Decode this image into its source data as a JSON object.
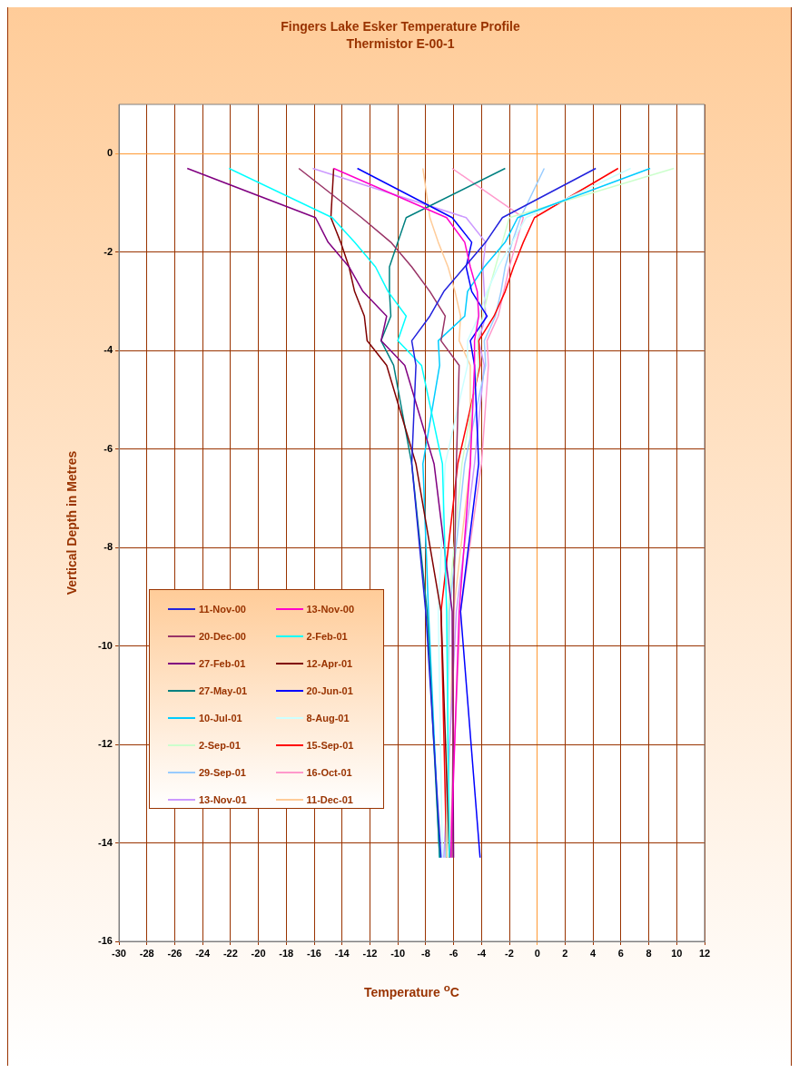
{
  "chart_data": {
    "type": "line",
    "title": "Fingers Lake Esker Temperature Profile",
    "subtitle": "Thermistor E-00-1",
    "xlabel": "Temperature $^{o}$C",
    "ylabel": "Vertical Depth in Metres",
    "xlim": [
      -30,
      12
    ],
    "xticks": [
      -30,
      -28,
      -26,
      -24,
      -22,
      -20,
      -18,
      -16,
      -14,
      -12,
      -10,
      -8,
      -6,
      -4,
      -2,
      0,
      2,
      4,
      6,
      8,
      10,
      12
    ],
    "ylim": [
      -16,
      1
    ],
    "yticks": [
      -16,
      -14,
      -12,
      -10,
      -8,
      -6,
      -4,
      -2,
      0
    ],
    "grid": true,
    "legend": "bottom left",
    "marker": "none",
    "line_style": "solid",
    "series": [
      {
        "name": "11-Nov-00",
        "color": "#2222dd",
        "x": [
          4.2,
          -2.5,
          -3.7,
          -5.2,
          -6.7,
          -7.7,
          -9.0,
          -8.7,
          -9.0,
          -8.0,
          -6.9
        ],
        "values": [
          -0.3,
          -1.3,
          -1.8,
          -2.3,
          -2.8,
          -3.3,
          -3.8,
          -4.3,
          -6.3,
          -9.3,
          -14.3
        ]
      },
      {
        "name": "13-Nov-00",
        "color": "#ff00cc",
        "x": [
          -14.6,
          -6.5,
          -5.2,
          -4.8,
          -4.3,
          -4.2,
          -4.5,
          -4.5,
          -4.8,
          -5.6,
          -6.2
        ],
        "values": [
          -0.3,
          -1.3,
          -1.8,
          -2.3,
          -2.8,
          -3.3,
          -3.8,
          -4.3,
          -6.3,
          -9.3,
          -14.3
        ]
      },
      {
        "name": "20-Dec-00",
        "color": "#993366",
        "x": [
          -17.1,
          -12.6,
          -10.5,
          -9.0,
          -7.7,
          -6.6,
          -6.9,
          -5.6,
          -5.8,
          -6.0,
          -6.1
        ],
        "values": [
          -0.3,
          -1.3,
          -1.8,
          -2.3,
          -2.8,
          -3.3,
          -3.8,
          -4.3,
          -6.3,
          -9.3,
          -14.3
        ]
      },
      {
        "name": "2-Feb-01",
        "color": "#00ffff",
        "x": [
          -22.1,
          -14.7,
          -13.1,
          -11.6,
          -10.7,
          -9.4,
          -10.0,
          -8.3,
          -6.8,
          -6.5,
          -6.3
        ],
        "values": [
          -0.3,
          -1.3,
          -1.8,
          -2.3,
          -2.8,
          -3.3,
          -3.8,
          -4.3,
          -6.3,
          -9.3,
          -14.3
        ]
      },
      {
        "name": "27-Feb-01",
        "color": "#800080",
        "x": [
          -25.1,
          -15.9,
          -15.0,
          -13.5,
          -12.5,
          -10.8,
          -11.2,
          -9.5,
          -7.4,
          -6.1,
          -6.0
        ],
        "values": [
          -0.3,
          -1.3,
          -1.8,
          -2.3,
          -2.8,
          -3.3,
          -3.8,
          -4.3,
          -6.3,
          -9.3,
          -14.3
        ]
      },
      {
        "name": "12-Apr-01",
        "color": "#800000",
        "x": [
          -14.6,
          -14.8,
          -14.1,
          -13.5,
          -13.1,
          -12.4,
          -12.2,
          -10.8,
          -8.7,
          -6.9,
          -6.3
        ],
        "values": [
          -0.3,
          -1.3,
          -1.8,
          -2.3,
          -2.8,
          -3.3,
          -3.8,
          -4.3,
          -6.3,
          -9.3,
          -14.3
        ]
      },
      {
        "name": "27-May-01",
        "color": "#008080",
        "x": [
          -2.3,
          -9.4,
          -10.0,
          -10.6,
          -10.6,
          -10.5,
          -11.2,
          -10.3,
          -9.0,
          -7.9,
          -7.0
        ],
        "values": [
          -0.3,
          -1.3,
          -1.8,
          -2.3,
          -2.8,
          -3.3,
          -3.8,
          -4.3,
          -6.3,
          -9.3,
          -14.3
        ]
      },
      {
        "name": "20-Jun-01",
        "color": "#0000ff",
        "x": [
          -12.9,
          -6.1,
          -4.7,
          -5.1,
          -4.7,
          -3.6,
          -4.8,
          -4.5,
          -4.2,
          -5.5,
          -4.1
        ],
        "values": [
          -0.3,
          -1.3,
          -1.8,
          -2.3,
          -2.8,
          -3.3,
          -3.8,
          -4.3,
          -6.3,
          -9.3,
          -14.3
        ]
      },
      {
        "name": "10-Jul-01",
        "color": "#00ccff",
        "x": [
          8.1,
          -1.4,
          -2.3,
          -3.8,
          -5.0,
          -5.2,
          -7.1,
          -7.0,
          -8.2,
          -7.8,
          -7.0
        ],
        "values": [
          -0.3,
          -1.3,
          -1.8,
          -2.3,
          -2.8,
          -3.3,
          -3.8,
          -4.3,
          -6.3,
          -9.3,
          -14.3
        ]
      },
      {
        "name": "8-Aug-01",
        "color": "#ccffff",
        "x": [
          6.7,
          -0.8,
          -1.8,
          -2.8,
          -3.6,
          -4.2,
          -5.0,
          -5.0,
          -6.6,
          -7.1,
          -6.8
        ],
        "values": [
          -0.3,
          -1.3,
          -1.8,
          -2.3,
          -2.8,
          -3.3,
          -3.8,
          -4.3,
          -6.3,
          -9.3,
          -14.3
        ]
      },
      {
        "name": "2-Sep-01",
        "color": "#ccffcc",
        "x": [
          9.8,
          -2.0,
          -2.5,
          -3.0,
          -3.5,
          -3.9,
          -4.3,
          -4.2,
          -5.4,
          -6.4,
          -6.5
        ],
        "values": [
          -0.3,
          -1.3,
          -1.8,
          -2.3,
          -2.8,
          -3.3,
          -3.8,
          -4.3,
          -6.3,
          -9.3,
          -14.3
        ]
      },
      {
        "name": "15-Sep-01",
        "color": "#ff0000",
        "x": [
          5.8,
          -0.2,
          -1.0,
          -1.7,
          -2.3,
          -3.1,
          -4.2,
          -4.1,
          -5.7,
          -6.9,
          -6.5
        ],
        "values": [
          -0.3,
          -1.3,
          -1.8,
          -2.3,
          -2.8,
          -3.3,
          -3.8,
          -4.3,
          -6.3,
          -9.3,
          -14.3
        ]
      },
      {
        "name": "29-Sep-01",
        "color": "#99ccff",
        "x": [
          0.5,
          -1.2,
          -1.8,
          -2.3,
          -2.6,
          -3.0,
          -3.8,
          -3.7,
          -5.2,
          -6.3,
          -6.6
        ],
        "values": [
          -0.3,
          -1.3,
          -1.8,
          -2.3,
          -2.8,
          -3.3,
          -3.8,
          -4.3,
          -6.3,
          -9.3,
          -14.3
        ]
      },
      {
        "name": "16-Oct-01",
        "color": "#ff99cc",
        "x": [
          -6.1,
          -1.0,
          -1.5,
          -2.0,
          -2.4,
          -2.8,
          -3.6,
          -3.5,
          -4.0,
          -5.5,
          -6.3
        ],
        "values": [
          -0.3,
          -1.3,
          -1.8,
          -2.3,
          -2.8,
          -3.3,
          -3.8,
          -4.3,
          -6.3,
          -9.3,
          -14.3
        ]
      },
      {
        "name": "13-Nov-01",
        "color": "#cc99ff",
        "x": [
          -16.1,
          -5.1,
          -3.7,
          -3.9,
          -3.8,
          -3.7,
          -4.2,
          -3.8,
          -4.5,
          -5.8,
          -6.7
        ],
        "values": [
          -0.3,
          -1.3,
          -1.8,
          -2.3,
          -2.8,
          -3.3,
          -3.8,
          -4.3,
          -6.3,
          -9.3,
          -14.3
        ]
      },
      {
        "name": "11-Dec-01",
        "color": "#ffcc99",
        "x": [
          -8.2,
          -7.7,
          -7.1,
          -6.4,
          -5.9,
          -5.5,
          -5.6,
          -4.8,
          -4.8,
          -6.0,
          -6.5
        ],
        "values": [
          -0.3,
          -1.3,
          -1.8,
          -2.3,
          -2.8,
          -3.3,
          -3.8,
          -4.3,
          -6.3,
          -9.3,
          -14.3
        ]
      }
    ]
  }
}
